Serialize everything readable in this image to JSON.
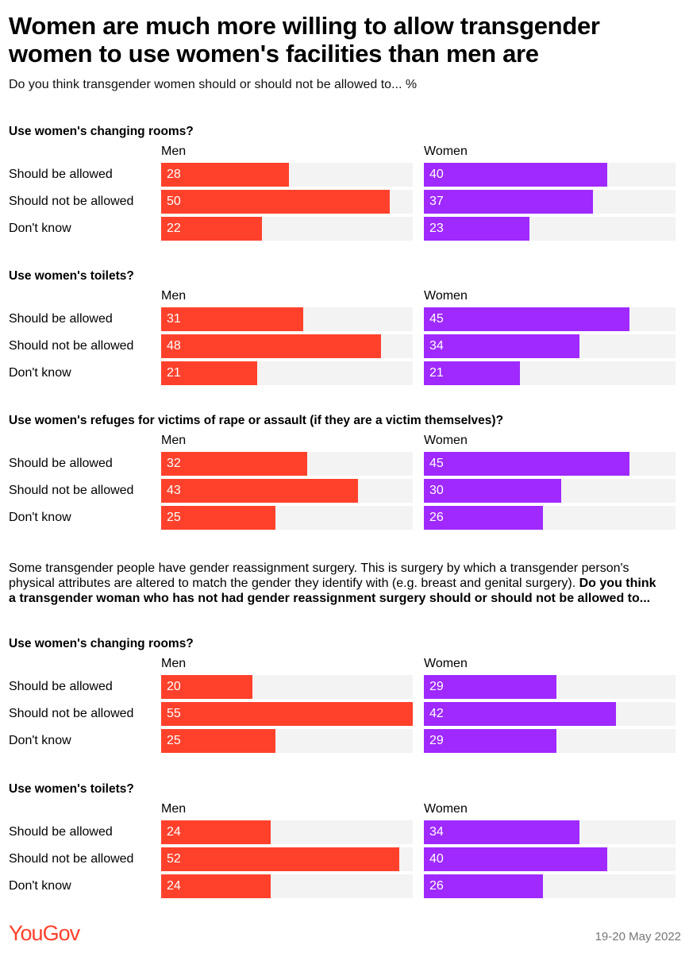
{
  "title": "Women are much more willing to allow transgender women to use women's facilities than men are",
  "subtitle": "Do you think transgender women should or should not be allowed to... %",
  "note": {
    "plain": "Some transgender people have gender reassignment surgery. This is surgery by which a transgender person's physical attributes are altered to match the gender they identify with (e.g. breast and genital surgery).",
    "bold": "Do you think a transgender woman who has not had gender reassignment surgery should or should not be allowed to..."
  },
  "footer": {
    "logo": "YouGov",
    "date": "19-20 May 2022"
  },
  "colors": {
    "men": "#ff412c",
    "women": "#9f29ff",
    "track": "#f3f3f3"
  },
  "chart_data": {
    "type": "bar",
    "orientation": "horizontal",
    "unit": "%",
    "xlim": [
      0,
      55
    ],
    "categories": [
      "Should be allowed",
      "Should not be allowed",
      "Don't know"
    ],
    "panels": [
      {
        "question": "Use women's changing rooms?",
        "series": [
          {
            "name": "Men",
            "values": [
              28,
              50,
              22
            ]
          },
          {
            "name": "Women",
            "values": [
              40,
              37,
              23
            ]
          }
        ]
      },
      {
        "question": "Use women's toilets?",
        "series": [
          {
            "name": "Men",
            "values": [
              31,
              48,
              21
            ]
          },
          {
            "name": "Women",
            "values": [
              45,
              34,
              21
            ]
          }
        ]
      },
      {
        "question": "Use women's refuges for victims of rape or assault (if they are a victim themselves)?",
        "series": [
          {
            "name": "Men",
            "values": [
              32,
              43,
              25
            ]
          },
          {
            "name": "Women",
            "values": [
              45,
              30,
              26
            ]
          }
        ]
      },
      {
        "question": "Use women's changing rooms?",
        "series": [
          {
            "name": "Men",
            "values": [
              20,
              55,
              25
            ]
          },
          {
            "name": "Women",
            "values": [
              29,
              42,
              29
            ]
          }
        ]
      },
      {
        "question": "Use women's toilets?",
        "series": [
          {
            "name": "Men",
            "values": [
              24,
              52,
              24
            ]
          },
          {
            "name": "Women",
            "values": [
              34,
              40,
              26
            ]
          }
        ]
      }
    ]
  }
}
